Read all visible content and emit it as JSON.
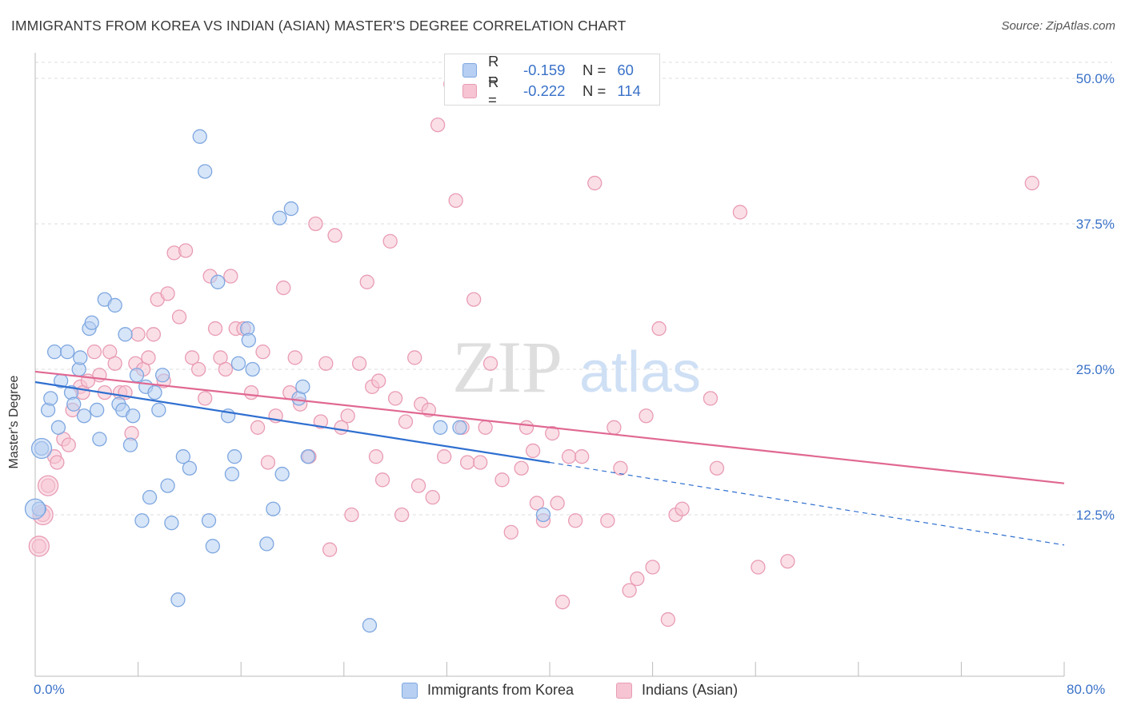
{
  "title": "IMMIGRANTS FROM KOREA VS INDIAN (ASIAN) MASTER'S DEGREE CORRELATION CHART",
  "source": "Source: ZipAtlas.com",
  "watermark": {
    "zip": "ZIP",
    "atlas": "atlas"
  },
  "legend_top": {
    "rows": [
      {
        "r_label": "R =",
        "r_value": "-0.159",
        "n_label": "N =",
        "n_value": "60"
      },
      {
        "r_label": "R =",
        "r_value": "-0.222",
        "n_label": "N =",
        "n_value": "114"
      }
    ]
  },
  "legend_bottom": {
    "korea": "Immigrants from Korea",
    "indian": "Indians (Asian)"
  },
  "colors": {
    "korea_fill": "#b7cff2",
    "korea_stroke": "#7ea7e0",
    "korea_line": "#2f6fd0",
    "indian_fill": "#f6c4d3",
    "indian_stroke": "#e99cb4",
    "indian_line": "#e06892",
    "tick_label": "#3a72c8",
    "grid": "#dddddd"
  },
  "chart_data": {
    "type": "scatter",
    "xlabel": "",
    "ylabel": "Master's Degree",
    "xlim": [
      0,
      80
    ],
    "ylim": [
      0,
      50
    ],
    "x_tick_labels": [
      "0.0%",
      "80.0%"
    ],
    "y_ticks": [
      12.5,
      25.0,
      37.5,
      50.0
    ],
    "y_tick_labels": [
      "12.5%",
      "25.0%",
      "37.5%",
      "50.0%"
    ],
    "grid": true,
    "series": [
      {
        "name": "Immigrants from Korea",
        "r": -0.159,
        "n": 60,
        "trend": {
          "x0": 0,
          "y0": 23.9,
          "x1": 40,
          "y1": 17.0,
          "dashed_to_x": 80,
          "dashed_to_y": 9.9
        },
        "points": [
          [
            0.5,
            18.2
          ],
          [
            0.3,
            13.0
          ],
          [
            1.0,
            21.5
          ],
          [
            1.2,
            22.5
          ],
          [
            1.5,
            26.5
          ],
          [
            1.8,
            20.0
          ],
          [
            2.0,
            24.0
          ],
          [
            2.5,
            26.5
          ],
          [
            2.8,
            23.0
          ],
          [
            3.0,
            22.0
          ],
          [
            3.4,
            25.0
          ],
          [
            3.5,
            26.0
          ],
          [
            3.8,
            21.0
          ],
          [
            4.2,
            28.5
          ],
          [
            4.4,
            29.0
          ],
          [
            4.8,
            21.5
          ],
          [
            5.0,
            19.0
          ],
          [
            5.4,
            31.0
          ],
          [
            6.2,
            30.5
          ],
          [
            6.5,
            22.0
          ],
          [
            6.8,
            21.5
          ],
          [
            7.0,
            28.0
          ],
          [
            7.4,
            18.5
          ],
          [
            7.6,
            21.0
          ],
          [
            7.9,
            24.5
          ],
          [
            8.3,
            12.0
          ],
          [
            8.6,
            23.5
          ],
          [
            8.9,
            14.0
          ],
          [
            9.3,
            23.0
          ],
          [
            9.6,
            21.5
          ],
          [
            9.9,
            24.5
          ],
          [
            10.3,
            15.0
          ],
          [
            10.6,
            11.8
          ],
          [
            11.1,
            5.2
          ],
          [
            11.5,
            17.5
          ],
          [
            12.0,
            16.5
          ],
          [
            12.8,
            45.0
          ],
          [
            13.2,
            42.0
          ],
          [
            13.5,
            12.0
          ],
          [
            13.8,
            9.8
          ],
          [
            14.2,
            32.5
          ],
          [
            15.0,
            21.0
          ],
          [
            15.3,
            16.0
          ],
          [
            15.5,
            17.5
          ],
          [
            15.8,
            25.5
          ],
          [
            16.5,
            28.5
          ],
          [
            16.6,
            27.5
          ],
          [
            16.9,
            25.0
          ],
          [
            18.0,
            10.0
          ],
          [
            18.5,
            13.0
          ],
          [
            19.0,
            38.0
          ],
          [
            19.2,
            16.0
          ],
          [
            19.9,
            38.8
          ],
          [
            20.5,
            22.5
          ],
          [
            20.8,
            23.5
          ],
          [
            21.2,
            17.5
          ],
          [
            26.0,
            3.0
          ],
          [
            31.5,
            20.0
          ],
          [
            39.5,
            12.5
          ],
          [
            33.0,
            20.0
          ]
        ],
        "large_points": [
          [
            0,
            13.0
          ],
          [
            0.5,
            18.2
          ]
        ]
      },
      {
        "name": "Indians (Asian)",
        "r": -0.222,
        "n": 114,
        "trend": {
          "x0": 0,
          "y0": 24.8,
          "x1": 80,
          "y1": 15.2
        },
        "points": [
          [
            0.3,
            9.8
          ],
          [
            0.6,
            12.5
          ],
          [
            1.0,
            15.0
          ],
          [
            1.5,
            17.5
          ],
          [
            1.7,
            17.0
          ],
          [
            2.2,
            19.0
          ],
          [
            2.6,
            18.5
          ],
          [
            2.9,
            21.5
          ],
          [
            3.5,
            23.5
          ],
          [
            3.7,
            23.0
          ],
          [
            4.1,
            24.0
          ],
          [
            4.6,
            26.5
          ],
          [
            5.0,
            24.5
          ],
          [
            5.4,
            23.0
          ],
          [
            5.8,
            26.5
          ],
          [
            6.2,
            25.5
          ],
          [
            6.6,
            23.0
          ],
          [
            7.0,
            23.0
          ],
          [
            7.5,
            19.5
          ],
          [
            7.8,
            25.5
          ],
          [
            8.0,
            28.0
          ],
          [
            8.4,
            25.0
          ],
          [
            8.8,
            26.0
          ],
          [
            9.2,
            28.0
          ],
          [
            9.5,
            31.0
          ],
          [
            10.0,
            24.0
          ],
          [
            10.3,
            31.5
          ],
          [
            10.8,
            35.0
          ],
          [
            11.2,
            29.5
          ],
          [
            11.7,
            35.2
          ],
          [
            12.2,
            26.0
          ],
          [
            12.7,
            25.0
          ],
          [
            13.2,
            22.5
          ],
          [
            13.6,
            33.0
          ],
          [
            14.0,
            28.5
          ],
          [
            14.4,
            26.0
          ],
          [
            14.8,
            25.0
          ],
          [
            15.2,
            33.0
          ],
          [
            15.6,
            28.5
          ],
          [
            16.2,
            28.5
          ],
          [
            16.8,
            23.0
          ],
          [
            17.3,
            20.0
          ],
          [
            17.7,
            26.5
          ],
          [
            18.1,
            17.0
          ],
          [
            18.7,
            21.0
          ],
          [
            19.3,
            32.0
          ],
          [
            19.8,
            23.0
          ],
          [
            20.2,
            26.0
          ],
          [
            20.6,
            22.0
          ],
          [
            21.3,
            17.5
          ],
          [
            21.8,
            37.5
          ],
          [
            22.2,
            20.5
          ],
          [
            22.6,
            25.5
          ],
          [
            22.9,
            9.5
          ],
          [
            23.3,
            36.5
          ],
          [
            23.8,
            20.0
          ],
          [
            24.3,
            21.0
          ],
          [
            24.6,
            12.5
          ],
          [
            25.2,
            25.5
          ],
          [
            25.8,
            32.5
          ],
          [
            26.2,
            23.5
          ],
          [
            26.5,
            17.5
          ],
          [
            26.7,
            24.0
          ],
          [
            27.0,
            15.5
          ],
          [
            27.6,
            36.0
          ],
          [
            28.0,
            22.5
          ],
          [
            28.5,
            12.5
          ],
          [
            28.8,
            20.5
          ],
          [
            29.5,
            26.0
          ],
          [
            29.8,
            15.0
          ],
          [
            30.0,
            22.0
          ],
          [
            30.6,
            21.5
          ],
          [
            30.9,
            14.0
          ],
          [
            31.3,
            46.0
          ],
          [
            31.8,
            17.5
          ],
          [
            32.3,
            49.5
          ],
          [
            32.7,
            39.5
          ],
          [
            33.2,
            20.0
          ],
          [
            33.6,
            17.0
          ],
          [
            34.1,
            31.0
          ],
          [
            34.6,
            17.0
          ],
          [
            35.0,
            20.0
          ],
          [
            35.4,
            25.5
          ],
          [
            36.3,
            15.5
          ],
          [
            37.0,
            11.0
          ],
          [
            37.8,
            16.5
          ],
          [
            38.2,
            20.0
          ],
          [
            38.7,
            18.0
          ],
          [
            39.0,
            13.5
          ],
          [
            39.5,
            12.0
          ],
          [
            40.2,
            19.5
          ],
          [
            40.6,
            13.5
          ],
          [
            41.0,
            5.0
          ],
          [
            41.5,
            17.5
          ],
          [
            42.0,
            12.0
          ],
          [
            42.5,
            17.5
          ],
          [
            43.5,
            41.0
          ],
          [
            44.5,
            12.0
          ],
          [
            45.0,
            20.0
          ],
          [
            45.5,
            16.5
          ],
          [
            46.2,
            6.0
          ],
          [
            46.8,
            7.0
          ],
          [
            47.5,
            21.0
          ],
          [
            48.0,
            8.0
          ],
          [
            48.5,
            28.5
          ],
          [
            49.2,
            3.5
          ],
          [
            49.8,
            12.5
          ],
          [
            50.3,
            13.0
          ],
          [
            52.5,
            22.5
          ],
          [
            53.0,
            16.5
          ],
          [
            54.8,
            38.5
          ],
          [
            56.2,
            8.0
          ],
          [
            58.5,
            8.5
          ],
          [
            77.5,
            41.0
          ]
        ],
        "large_points": [
          [
            0.3,
            9.8
          ],
          [
            0.6,
            12.5
          ],
          [
            1.0,
            15.0
          ]
        ]
      }
    ]
  }
}
